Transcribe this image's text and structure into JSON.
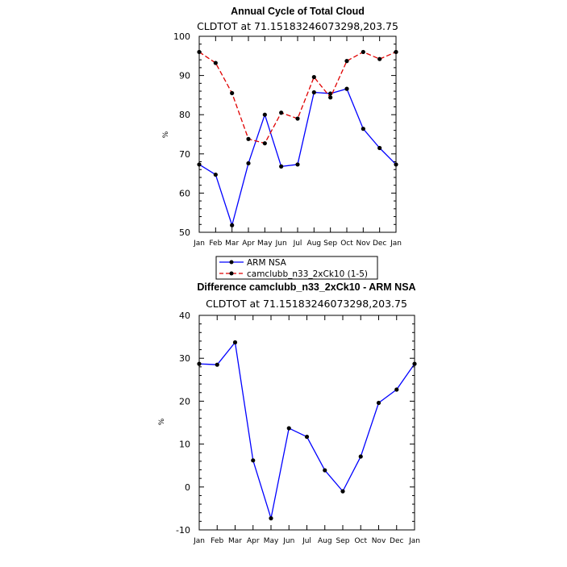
{
  "chart_data": [
    {
      "type": "line",
      "title": "Annual Cycle of Total Cloud",
      "subtitle": "CLDTOT at 71.15183246073298,203.75",
      "ylabel": "%",
      "ylim": [
        50,
        100
      ],
      "yticks": [
        50,
        60,
        70,
        80,
        90,
        100
      ],
      "categories": [
        "Jan",
        "Feb",
        "Mar",
        "Apr",
        "May",
        "Jun",
        "Jul",
        "Aug",
        "Sep",
        "Oct",
        "Nov",
        "Dec",
        "Jan"
      ],
      "series": [
        {
          "name": "ARM NSA",
          "color": "#0000ff",
          "style": "solid",
          "values": [
            67.3,
            64.7,
            51.8,
            67.6,
            80.0,
            66.8,
            67.3,
            85.7,
            85.4,
            86.6,
            76.4,
            71.5,
            67.3
          ]
        },
        {
          "name": "camclubb_n33_2xCk10 (1-5)",
          "color": "#e00000",
          "style": "dashed",
          "values": [
            96.0,
            93.2,
            85.5,
            73.8,
            72.7,
            80.5,
            79.0,
            89.6,
            84.4,
            93.7,
            96.0,
            94.2,
            96.0
          ]
        }
      ],
      "legend": "below"
    },
    {
      "type": "line",
      "title": "Difference camclubb_n33_2xCk10 - ARM NSA",
      "subtitle": "CLDTOT at 71.15183246073298,203.75",
      "ylabel": "%",
      "ylim": [
        -10,
        40
      ],
      "yticks": [
        -10,
        0,
        10,
        20,
        30,
        40
      ],
      "categories": [
        "Jan",
        "Feb",
        "Mar",
        "Apr",
        "May",
        "Jun",
        "Jul",
        "Aug",
        "Sep",
        "Oct",
        "Nov",
        "Dec",
        "Jan"
      ],
      "series": [
        {
          "color": "#0000ff",
          "style": "solid",
          "values": [
            28.7,
            28.5,
            33.7,
            6.2,
            -7.3,
            13.7,
            11.7,
            3.9,
            -1.0,
            7.1,
            19.6,
            22.7,
            28.7
          ]
        }
      ]
    }
  ]
}
